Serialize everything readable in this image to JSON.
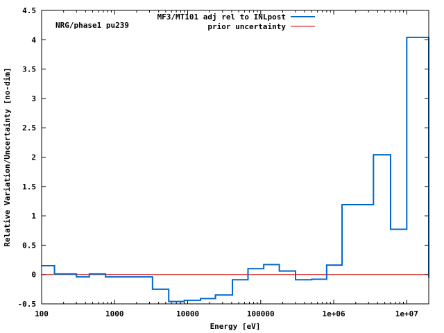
{
  "chart_data": {
    "type": "line",
    "style": "step",
    "annotation": "NRG/phase1 pu239",
    "xlabel": "Energy [eV]",
    "ylabel": "Relative Variation/Uncertainty [no-dim]",
    "x_scale": "log",
    "xlim": [
      100,
      20000000
    ],
    "ylim": [
      -0.5,
      4.5
    ],
    "x_ticks": [
      100,
      1000,
      10000,
      100000,
      1000000,
      10000000
    ],
    "x_tick_labels": [
      "100",
      "1000",
      "10000",
      "100000",
      "1e+06",
      "1e+07"
    ],
    "y_ticks": [
      -0.5,
      0,
      0.5,
      1,
      1.5,
      2,
      2.5,
      3,
      3.5,
      4,
      4.5
    ],
    "y_tick_labels": [
      "-0.5",
      "0",
      "0.5",
      "1",
      "1.5",
      "2",
      "2.5",
      "3",
      "3.5",
      "4",
      "4.5"
    ],
    "legend_position": "top-right",
    "series": [
      {
        "name": "MF3/MT101 adj rel to INLpost",
        "color": "#0066cc",
        "edges": [
          100,
          150,
          300,
          450,
          750,
          2000,
          3300,
          5500,
          9000,
          15000,
          24000,
          41000,
          67000,
          110000,
          180000,
          300000,
          500000,
          800000,
          1300000,
          3500000,
          6000000,
          10000000,
          20000000
        ],
        "values": [
          0.15,
          0.01,
          -0.04,
          0.01,
          -0.04,
          -0.04,
          -0.25,
          -0.46,
          -0.44,
          -0.41,
          -0.35,
          -0.09,
          0.1,
          0.17,
          0.06,
          -0.09,
          -0.08,
          0.16,
          1.19,
          2.04,
          0.77,
          4.04,
          -0.05
        ]
      },
      {
        "name": "prior uncertainty",
        "color": "#cc0000",
        "x": [
          100,
          20000000
        ],
        "values": [
          0,
          0
        ]
      }
    ]
  }
}
